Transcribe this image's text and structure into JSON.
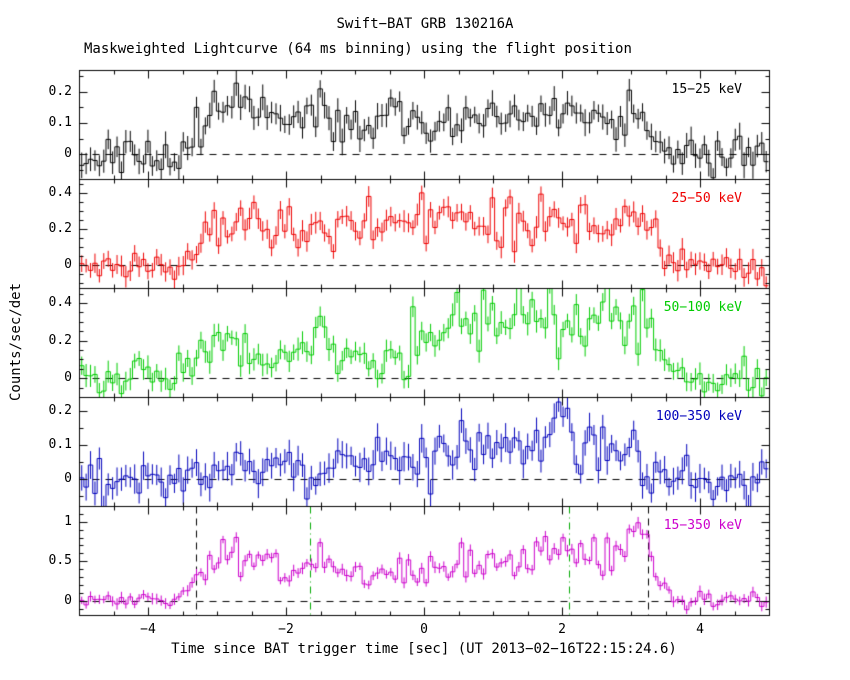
{
  "chart_data": {
    "type": "line",
    "title": "Swift−BAT GRB 130216A",
    "subtitle": "Maskweighted Lightcurve (64 ms binning) using the flight position",
    "xlabel": "Time since BAT trigger time [sec] (UT 2013−02−16T22:15:24.6)",
    "ylabel": "Counts/sec/det",
    "xlim": [
      -5,
      5
    ],
    "bin_sec": 0.064,
    "grid": false,
    "legend_position": "inside-right-per-panel",
    "x_minor_step": 0.5,
    "x_ticks": [
      {
        "v": -4,
        "label": "−4"
      },
      {
        "v": -2,
        "label": "−2"
      },
      {
        "v": 0,
        "label": "0"
      },
      {
        "v": 2,
        "label": "2"
      },
      {
        "v": 4,
        "label": "4"
      }
    ],
    "panels": [
      {
        "label": "15−25 keV",
        "color": "#000000",
        "ylim": [
          -0.08,
          0.27
        ],
        "y_ticks": [
          {
            "v": 0,
            "label": "0"
          },
          {
            "v": 0.1,
            "label": "0.1"
          },
          {
            "v": 0.2,
            "label": "0.2"
          }
        ],
        "y_minor_step": 0.05,
        "seed": 11,
        "noise_sigma": 0.03,
        "err_size": 0.035,
        "flux_jitter": 0.25,
        "envelope": [
          [
            -5,
            0
          ],
          [
            -3.5,
            0
          ],
          [
            -3.35,
            0.05
          ],
          [
            -3.2,
            0.12
          ],
          [
            -3.0,
            0.13
          ],
          [
            -2.8,
            0.17
          ],
          [
            -2.6,
            0.15
          ],
          [
            -2.4,
            0.11
          ],
          [
            -2.1,
            0.1
          ],
          [
            -1.8,
            0.13
          ],
          [
            -1.55,
            0.17
          ],
          [
            -1.35,
            0.11
          ],
          [
            -1.1,
            0.09
          ],
          [
            -0.8,
            0.11
          ],
          [
            -0.5,
            0.12
          ],
          [
            -0.2,
            0.11
          ],
          [
            0.1,
            0.09
          ],
          [
            0.5,
            0.1
          ],
          [
            0.9,
            0.12
          ],
          [
            1.3,
            0.13
          ],
          [
            1.7,
            0.12
          ],
          [
            2.1,
            0.13
          ],
          [
            2.5,
            0.13
          ],
          [
            2.9,
            0.14
          ],
          [
            3.2,
            0.12
          ],
          [
            3.4,
            0.05
          ],
          [
            3.6,
            0.01
          ],
          [
            3.9,
            0
          ],
          [
            5,
            0
          ]
        ]
      },
      {
        "label": "25−50 keV",
        "color": "#ee0000",
        "ylim": [
          -0.13,
          0.48
        ],
        "y_ticks": [
          {
            "v": 0,
            "label": "0"
          },
          {
            "v": 0.2,
            "label": "0.2"
          },
          {
            "v": 0.4,
            "label": "0.4"
          }
        ],
        "y_minor_step": 0.05,
        "seed": 22,
        "noise_sigma": 0.045,
        "err_size": 0.05,
        "flux_jitter": 0.25,
        "envelope": [
          [
            -5,
            0
          ],
          [
            -3.5,
            0
          ],
          [
            -3.35,
            0.08
          ],
          [
            -3.2,
            0.18
          ],
          [
            -3.0,
            0.22
          ],
          [
            -2.8,
            0.28
          ],
          [
            -2.6,
            0.26
          ],
          [
            -2.4,
            0.2
          ],
          [
            -2.1,
            0.18
          ],
          [
            -1.9,
            0.22
          ],
          [
            -1.6,
            0.24
          ],
          [
            -1.35,
            0.16
          ],
          [
            -1.1,
            0.2
          ],
          [
            -0.8,
            0.24
          ],
          [
            -0.5,
            0.26
          ],
          [
            -0.2,
            0.22
          ],
          [
            0.1,
            0.19
          ],
          [
            0.4,
            0.22
          ],
          [
            0.8,
            0.26
          ],
          [
            1.2,
            0.28
          ],
          [
            1.6,
            0.24
          ],
          [
            2.0,
            0.27
          ],
          [
            2.4,
            0.22
          ],
          [
            2.8,
            0.26
          ],
          [
            3.05,
            0.3
          ],
          [
            3.25,
            0.33
          ],
          [
            3.4,
            0.12
          ],
          [
            3.6,
            0.03
          ],
          [
            3.9,
            0
          ],
          [
            5,
            0
          ]
        ]
      },
      {
        "label": "50−100 keV",
        "color": "#00cc00",
        "ylim": [
          -0.1,
          0.48
        ],
        "y_ticks": [
          {
            "v": 0,
            "label": "0"
          },
          {
            "v": 0.2,
            "label": "0.2"
          },
          {
            "v": 0.4,
            "label": "0.4"
          }
        ],
        "y_minor_step": 0.05,
        "seed": 33,
        "noise_sigma": 0.05,
        "err_size": 0.05,
        "flux_jitter": 0.3,
        "envelope": [
          [
            -5,
            0
          ],
          [
            -3.5,
            0
          ],
          [
            -3.35,
            0.1
          ],
          [
            -3.2,
            0.2
          ],
          [
            -3.0,
            0.15
          ],
          [
            -2.8,
            0.19
          ],
          [
            -2.6,
            0.16
          ],
          [
            -2.3,
            0.12
          ],
          [
            -2.0,
            0.13
          ],
          [
            -1.7,
            0.18
          ],
          [
            -1.5,
            0.2
          ],
          [
            -1.3,
            0.13
          ],
          [
            -1.0,
            0.11
          ],
          [
            -0.7,
            0.13
          ],
          [
            -0.4,
            0.16
          ],
          [
            -0.1,
            0.2
          ],
          [
            0.2,
            0.24
          ],
          [
            0.5,
            0.26
          ],
          [
            0.8,
            0.3
          ],
          [
            1.1,
            0.34
          ],
          [
            1.4,
            0.36
          ],
          [
            1.7,
            0.31
          ],
          [
            2.0,
            0.3
          ],
          [
            2.3,
            0.34
          ],
          [
            2.6,
            0.32
          ],
          [
            2.9,
            0.36
          ],
          [
            3.15,
            0.33
          ],
          [
            3.35,
            0.12
          ],
          [
            3.55,
            0.04
          ],
          [
            3.9,
            0
          ],
          [
            5,
            0
          ]
        ]
      },
      {
        "label": "100−350 keV",
        "color": "#0000bb",
        "ylim": [
          -0.08,
          0.24
        ],
        "y_ticks": [
          {
            "v": 0,
            "label": "0"
          },
          {
            "v": 0.1,
            "label": "0.1"
          },
          {
            "v": 0.2,
            "label": "0.2"
          }
        ],
        "y_minor_step": 0.05,
        "seed": 44,
        "noise_sigma": 0.03,
        "err_size": 0.035,
        "flux_jitter": 0.3,
        "envelope": [
          [
            -5,
            0
          ],
          [
            -3.5,
            0
          ],
          [
            -3.3,
            0.03
          ],
          [
            -2.9,
            0.04
          ],
          [
            -2.4,
            0.04
          ],
          [
            -1.9,
            0.04
          ],
          [
            -1.4,
            0.04
          ],
          [
            -0.9,
            0.05
          ],
          [
            -0.5,
            0.05
          ],
          [
            -0.1,
            0.06
          ],
          [
            0.25,
            0.09
          ],
          [
            0.5,
            0.07
          ],
          [
            0.8,
            0.08
          ],
          [
            1.1,
            0.11
          ],
          [
            1.4,
            0.09
          ],
          [
            1.7,
            0.1
          ],
          [
            2.0,
            0.14
          ],
          [
            2.15,
            0.15
          ],
          [
            2.4,
            0.09
          ],
          [
            2.7,
            0.08
          ],
          [
            3.0,
            0.07
          ],
          [
            3.25,
            0.04
          ],
          [
            3.5,
            0.01
          ],
          [
            3.9,
            0
          ],
          [
            5,
            0
          ]
        ]
      },
      {
        "label": "15−350 keV",
        "color": "#cc00cc",
        "ylim": [
          -0.18,
          1.2
        ],
        "y_ticks": [
          {
            "v": 0,
            "label": "0"
          },
          {
            "v": 0.5,
            "label": "0.5"
          },
          {
            "v": 1,
            "label": "1"
          }
        ],
        "y_minor_step": 0.1,
        "seed": 55,
        "noise_sigma": 0.06,
        "err_size": 0.06,
        "flux_jitter": 0.22,
        "envelope": [
          [
            -5,
            0.01
          ],
          [
            -3.5,
            0.01
          ],
          [
            -3.35,
            0.2
          ],
          [
            -3.2,
            0.5
          ],
          [
            -3.0,
            0.55
          ],
          [
            -2.8,
            0.65
          ],
          [
            -2.6,
            0.6
          ],
          [
            -2.4,
            0.52
          ],
          [
            -2.1,
            0.42
          ],
          [
            -1.9,
            0.38
          ],
          [
            -1.7,
            0.45
          ],
          [
            -1.5,
            0.58
          ],
          [
            -1.3,
            0.42
          ],
          [
            -1.1,
            0.33
          ],
          [
            -0.9,
            0.3
          ],
          [
            -0.6,
            0.34
          ],
          [
            -0.3,
            0.42
          ],
          [
            0,
            0.38
          ],
          [
            0.3,
            0.4
          ],
          [
            0.6,
            0.46
          ],
          [
            0.9,
            0.52
          ],
          [
            1.2,
            0.6
          ],
          [
            1.5,
            0.57
          ],
          [
            1.8,
            0.6
          ],
          [
            2.1,
            0.68
          ],
          [
            2.4,
            0.56
          ],
          [
            2.7,
            0.62
          ],
          [
            3.0,
            0.72
          ],
          [
            3.2,
            0.78
          ],
          [
            3.35,
            0.3
          ],
          [
            3.5,
            0.08
          ],
          [
            3.9,
            0.01
          ],
          [
            5,
            0.01
          ]
        ]
      }
    ],
    "vlines": [
      {
        "panel": 4,
        "x": -3.3,
        "color": "#000000",
        "style": "dashed"
      },
      {
        "panel": 4,
        "x": -1.65,
        "color": "#00aa00",
        "style": "dashdot"
      },
      {
        "panel": 4,
        "x": 2.1,
        "color": "#00aa00",
        "style": "dashdot"
      },
      {
        "panel": 4,
        "x": 3.25,
        "color": "#000000",
        "style": "dashed"
      }
    ]
  }
}
